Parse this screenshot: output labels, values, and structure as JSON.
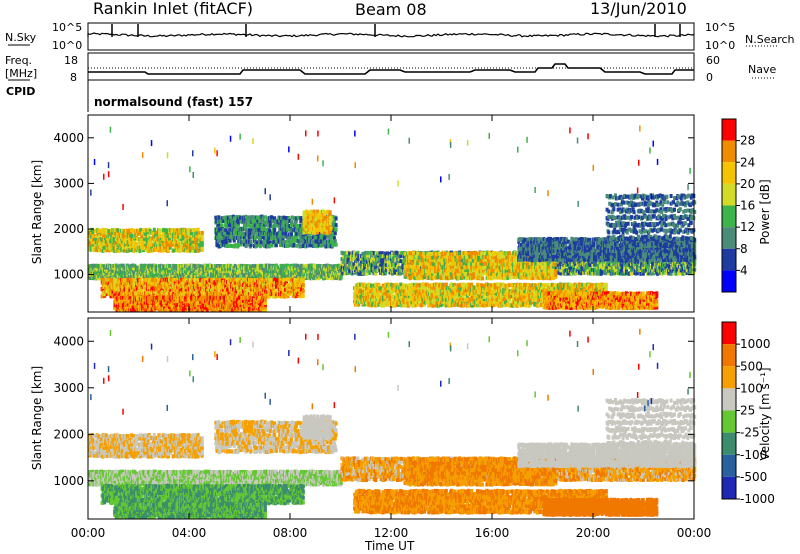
{
  "header": {
    "station": "Rankin Inlet (fitACF)",
    "beam": "Beam 08",
    "date": "13/Jun/2010"
  },
  "top_panels": {
    "nsky_label": "N.Sky",
    "nsky_ticks": [
      "10^5",
      "10^0"
    ],
    "nsearch_label": "N.Search",
    "nsearch_ticks": [
      "10^5",
      "10^0"
    ],
    "freq_label": "Freq.",
    "freq_unit": "[MHz]",
    "freq_ticks": [
      "18",
      "8"
    ],
    "nave_label": "Nave",
    "nave_ticks": [
      "60",
      "0"
    ],
    "cpid_label": "CPID",
    "cpid_value": "normalsound (fast) 157"
  },
  "chart_data": [
    {
      "type": "heatmap",
      "title": "",
      "xlabel": "Time UT",
      "ylabel": "Slant Range [km]",
      "x_ticks": [
        "00:00",
        "04:00",
        "08:00",
        "12:00",
        "16:00",
        "20:00",
        "00:00"
      ],
      "xlim": [
        0,
        24
      ],
      "y_ticks": [
        1000,
        2000,
        3000,
        4000
      ],
      "ylim": [
        180,
        4500
      ],
      "grid": false,
      "colorbar": {
        "label": "Power [dB]",
        "ticks": [
          4,
          8,
          12,
          16,
          20,
          24,
          28
        ],
        "range": [
          0,
          32
        ],
        "colors": [
          "#0000ff",
          "#1e3ca0",
          "#4a8c78",
          "#3cb44b",
          "#d2dc28",
          "#f5c300",
          "#f08c00",
          "#ff0000"
        ]
      }
    },
    {
      "type": "heatmap",
      "title": "",
      "xlabel": "Time UT",
      "ylabel": "Slant Range [km]",
      "x_ticks": [
        "00:00",
        "04:00",
        "08:00",
        "12:00",
        "16:00",
        "20:00",
        "00:00"
      ],
      "xlim": [
        0,
        24
      ],
      "y_ticks": [
        1000,
        2000,
        3000,
        4000
      ],
      "ylim": [
        180,
        4500
      ],
      "grid": false,
      "colorbar": {
        "label": "Velocity [m s⁻¹]",
        "ticks": [
          "1000",
          "500",
          "100",
          "25",
          "-25",
          "-100",
          "-500",
          "-1000"
        ],
        "colors": [
          "#1e28b4",
          "#2860a0",
          "#3c8c6e",
          "#64c832",
          "#c8c8c0",
          "#f5a000",
          "#f07800",
          "#ff0000"
        ]
      }
    }
  ]
}
